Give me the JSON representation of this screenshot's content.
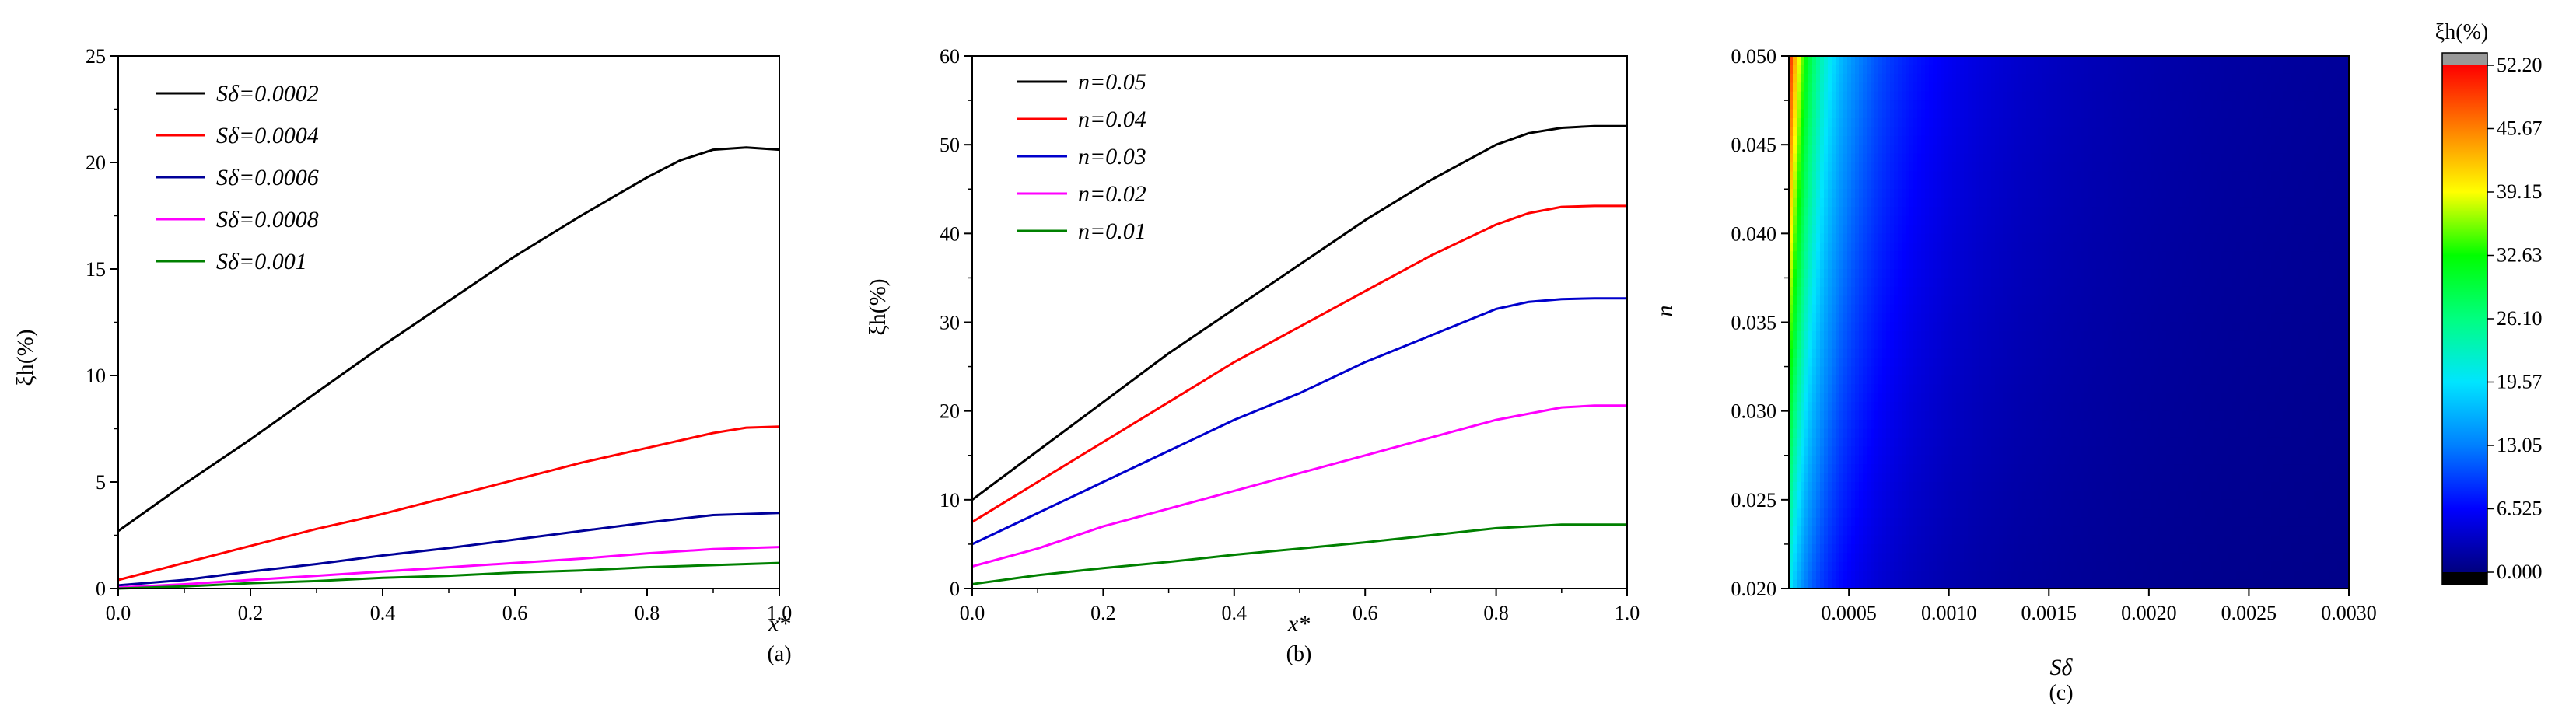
{
  "panels": [
    {
      "caption": "(a)",
      "chart_data": {
        "type": "line",
        "xlabel": "x*",
        "ylabel": "ξh(%)",
        "xlim": [
          0.0,
          1.0
        ],
        "ylim": [
          0,
          25
        ],
        "xticks": [
          "0.0",
          "0.2",
          "0.4",
          "0.6",
          "0.8",
          "1.0"
        ],
        "yticks": [
          "0",
          "5",
          "10",
          "15",
          "20",
          "25"
        ],
        "legend_position": "top-left",
        "series": [
          {
            "name": "Sδ=0.0002",
            "color": "#000000",
            "x": [
              0,
              0.1,
              0.2,
              0.3,
              0.4,
              0.5,
              0.6,
              0.7,
              0.8,
              0.85,
              0.9,
              0.95,
              1.0
            ],
            "y": [
              2.7,
              4.9,
              7.0,
              9.2,
              11.4,
              13.5,
              15.6,
              17.5,
              19.3,
              20.1,
              20.6,
              20.7,
              20.6
            ]
          },
          {
            "name": "Sδ=0.0004",
            "color": "#ff0000",
            "x": [
              0,
              0.1,
              0.2,
              0.3,
              0.4,
              0.5,
              0.6,
              0.7,
              0.8,
              0.9,
              0.95,
              1.0
            ],
            "y": [
              0.4,
              1.2,
              2.0,
              2.8,
              3.5,
              4.3,
              5.1,
              5.9,
              6.6,
              7.3,
              7.55,
              7.6
            ]
          },
          {
            "name": "Sδ=0.0006",
            "color": "#000099",
            "x": [
              0,
              0.1,
              0.2,
              0.3,
              0.4,
              0.5,
              0.6,
              0.7,
              0.8,
              0.9,
              1.0
            ],
            "y": [
              0.15,
              0.4,
              0.8,
              1.15,
              1.55,
              1.9,
              2.3,
              2.7,
              3.1,
              3.45,
              3.55
            ]
          },
          {
            "name": "Sδ=0.0008",
            "color": "#ff00ff",
            "x": [
              0,
              0.1,
              0.2,
              0.3,
              0.4,
              0.5,
              0.6,
              0.7,
              0.8,
              0.9,
              1.0
            ],
            "y": [
              0.05,
              0.2,
              0.4,
              0.6,
              0.8,
              1.0,
              1.2,
              1.4,
              1.65,
              1.85,
              1.95
            ]
          },
          {
            "name": "Sδ=0.001",
            "color": "#008000",
            "x": [
              0,
              0.1,
              0.2,
              0.3,
              0.4,
              0.5,
              0.6,
              0.7,
              0.8,
              0.9,
              1.0
            ],
            "y": [
              0.0,
              0.1,
              0.25,
              0.35,
              0.5,
              0.6,
              0.75,
              0.85,
              1.0,
              1.1,
              1.2
            ]
          }
        ]
      }
    },
    {
      "caption": "(b)",
      "chart_data": {
        "type": "line",
        "xlabel": "x*",
        "ylabel": "ξh(%)",
        "xlim": [
          0.0,
          1.0
        ],
        "ylim": [
          0,
          60
        ],
        "xticks": [
          "0.0",
          "0.2",
          "0.4",
          "0.6",
          "0.8",
          "1.0"
        ],
        "yticks": [
          "0",
          "10",
          "20",
          "30",
          "40",
          "50",
          "60"
        ],
        "legend_position": "top-left",
        "series": [
          {
            "name": "n=0.05",
            "color": "#000000",
            "x": [
              0,
              0.1,
              0.2,
              0.3,
              0.4,
              0.5,
              0.6,
              0.7,
              0.8,
              0.85,
              0.9,
              0.95,
              1.0
            ],
            "y": [
              10.0,
              15.5,
              21.0,
              26.5,
              31.5,
              36.5,
              41.5,
              46.0,
              50.0,
              51.3,
              51.9,
              52.1,
              52.1
            ]
          },
          {
            "name": "n=0.04",
            "color": "#ff0000",
            "x": [
              0,
              0.1,
              0.2,
              0.3,
              0.4,
              0.5,
              0.6,
              0.7,
              0.8,
              0.85,
              0.9,
              0.95,
              1.0
            ],
            "y": [
              7.5,
              12.0,
              16.5,
              21.0,
              25.5,
              29.5,
              33.5,
              37.5,
              41.0,
              42.3,
              43.0,
              43.1,
              43.1
            ]
          },
          {
            "name": "n=0.03",
            "color": "#0000cc",
            "x": [
              0,
              0.1,
              0.2,
              0.3,
              0.4,
              0.5,
              0.6,
              0.7,
              0.8,
              0.85,
              0.9,
              0.95,
              1.0
            ],
            "y": [
              5.0,
              8.5,
              12.0,
              15.5,
              19.0,
              22.0,
              25.5,
              28.5,
              31.5,
              32.3,
              32.6,
              32.7,
              32.7
            ]
          },
          {
            "name": "n=0.02",
            "color": "#ff00ff",
            "x": [
              0,
              0.1,
              0.2,
              0.3,
              0.4,
              0.5,
              0.6,
              0.7,
              0.8,
              0.9,
              0.95,
              1.0
            ],
            "y": [
              2.5,
              4.5,
              7.0,
              9.0,
              11.0,
              13.0,
              15.0,
              17.0,
              19.0,
              20.4,
              20.6,
              20.6
            ]
          },
          {
            "name": "n=0.01",
            "color": "#008000",
            "x": [
              0,
              0.1,
              0.2,
              0.3,
              0.4,
              0.5,
              0.6,
              0.7,
              0.8,
              0.9,
              1.0
            ],
            "y": [
              0.5,
              1.5,
              2.3,
              3.0,
              3.8,
              4.5,
              5.2,
              6.0,
              6.8,
              7.2,
              7.2
            ]
          }
        ]
      }
    },
    {
      "caption": "(c)",
      "chart_data": {
        "type": "heatmap",
        "xlabel": "Sδ",
        "ylabel": "n",
        "xlim": [
          0.0002,
          0.003
        ],
        "ylim": [
          0.02,
          0.05
        ],
        "xticks": [
          "0.0005",
          "0.0010",
          "0.0015",
          "0.0020",
          "0.0025",
          "0.0030"
        ],
        "xtick_values": [
          0.0005,
          0.001,
          0.0015,
          0.002,
          0.0025,
          0.003
        ],
        "yticks": [
          "0.020",
          "0.025",
          "0.030",
          "0.035",
          "0.040",
          "0.045",
          "0.050"
        ],
        "ytick_values": [
          0.02,
          0.025,
          0.03,
          0.035,
          0.04,
          0.045,
          0.05
        ],
        "value_model": "ξh ≈ 52.2 · (n / 0.05) · (0.0002 / Sδ)^1.35",
        "colorbar": {
          "title": "ξh(%)",
          "levels": [
            "0.000",
            "6.525",
            "13.05",
            "19.57",
            "26.10",
            "32.63",
            "39.15",
            "45.67",
            "52.20"
          ],
          "level_values": [
            0.0,
            6.525,
            13.05,
            19.57,
            26.1,
            32.63,
            39.15,
            45.67,
            52.2
          ],
          "colors": [
            "#00007f",
            "#0000ff",
            "#0080ff",
            "#00e5ff",
            "#00ff80",
            "#00ff00",
            "#ffff00",
            "#ff8000",
            "#ff0000"
          ],
          "over_color": "#999999",
          "under_color": "#000000"
        }
      }
    }
  ]
}
